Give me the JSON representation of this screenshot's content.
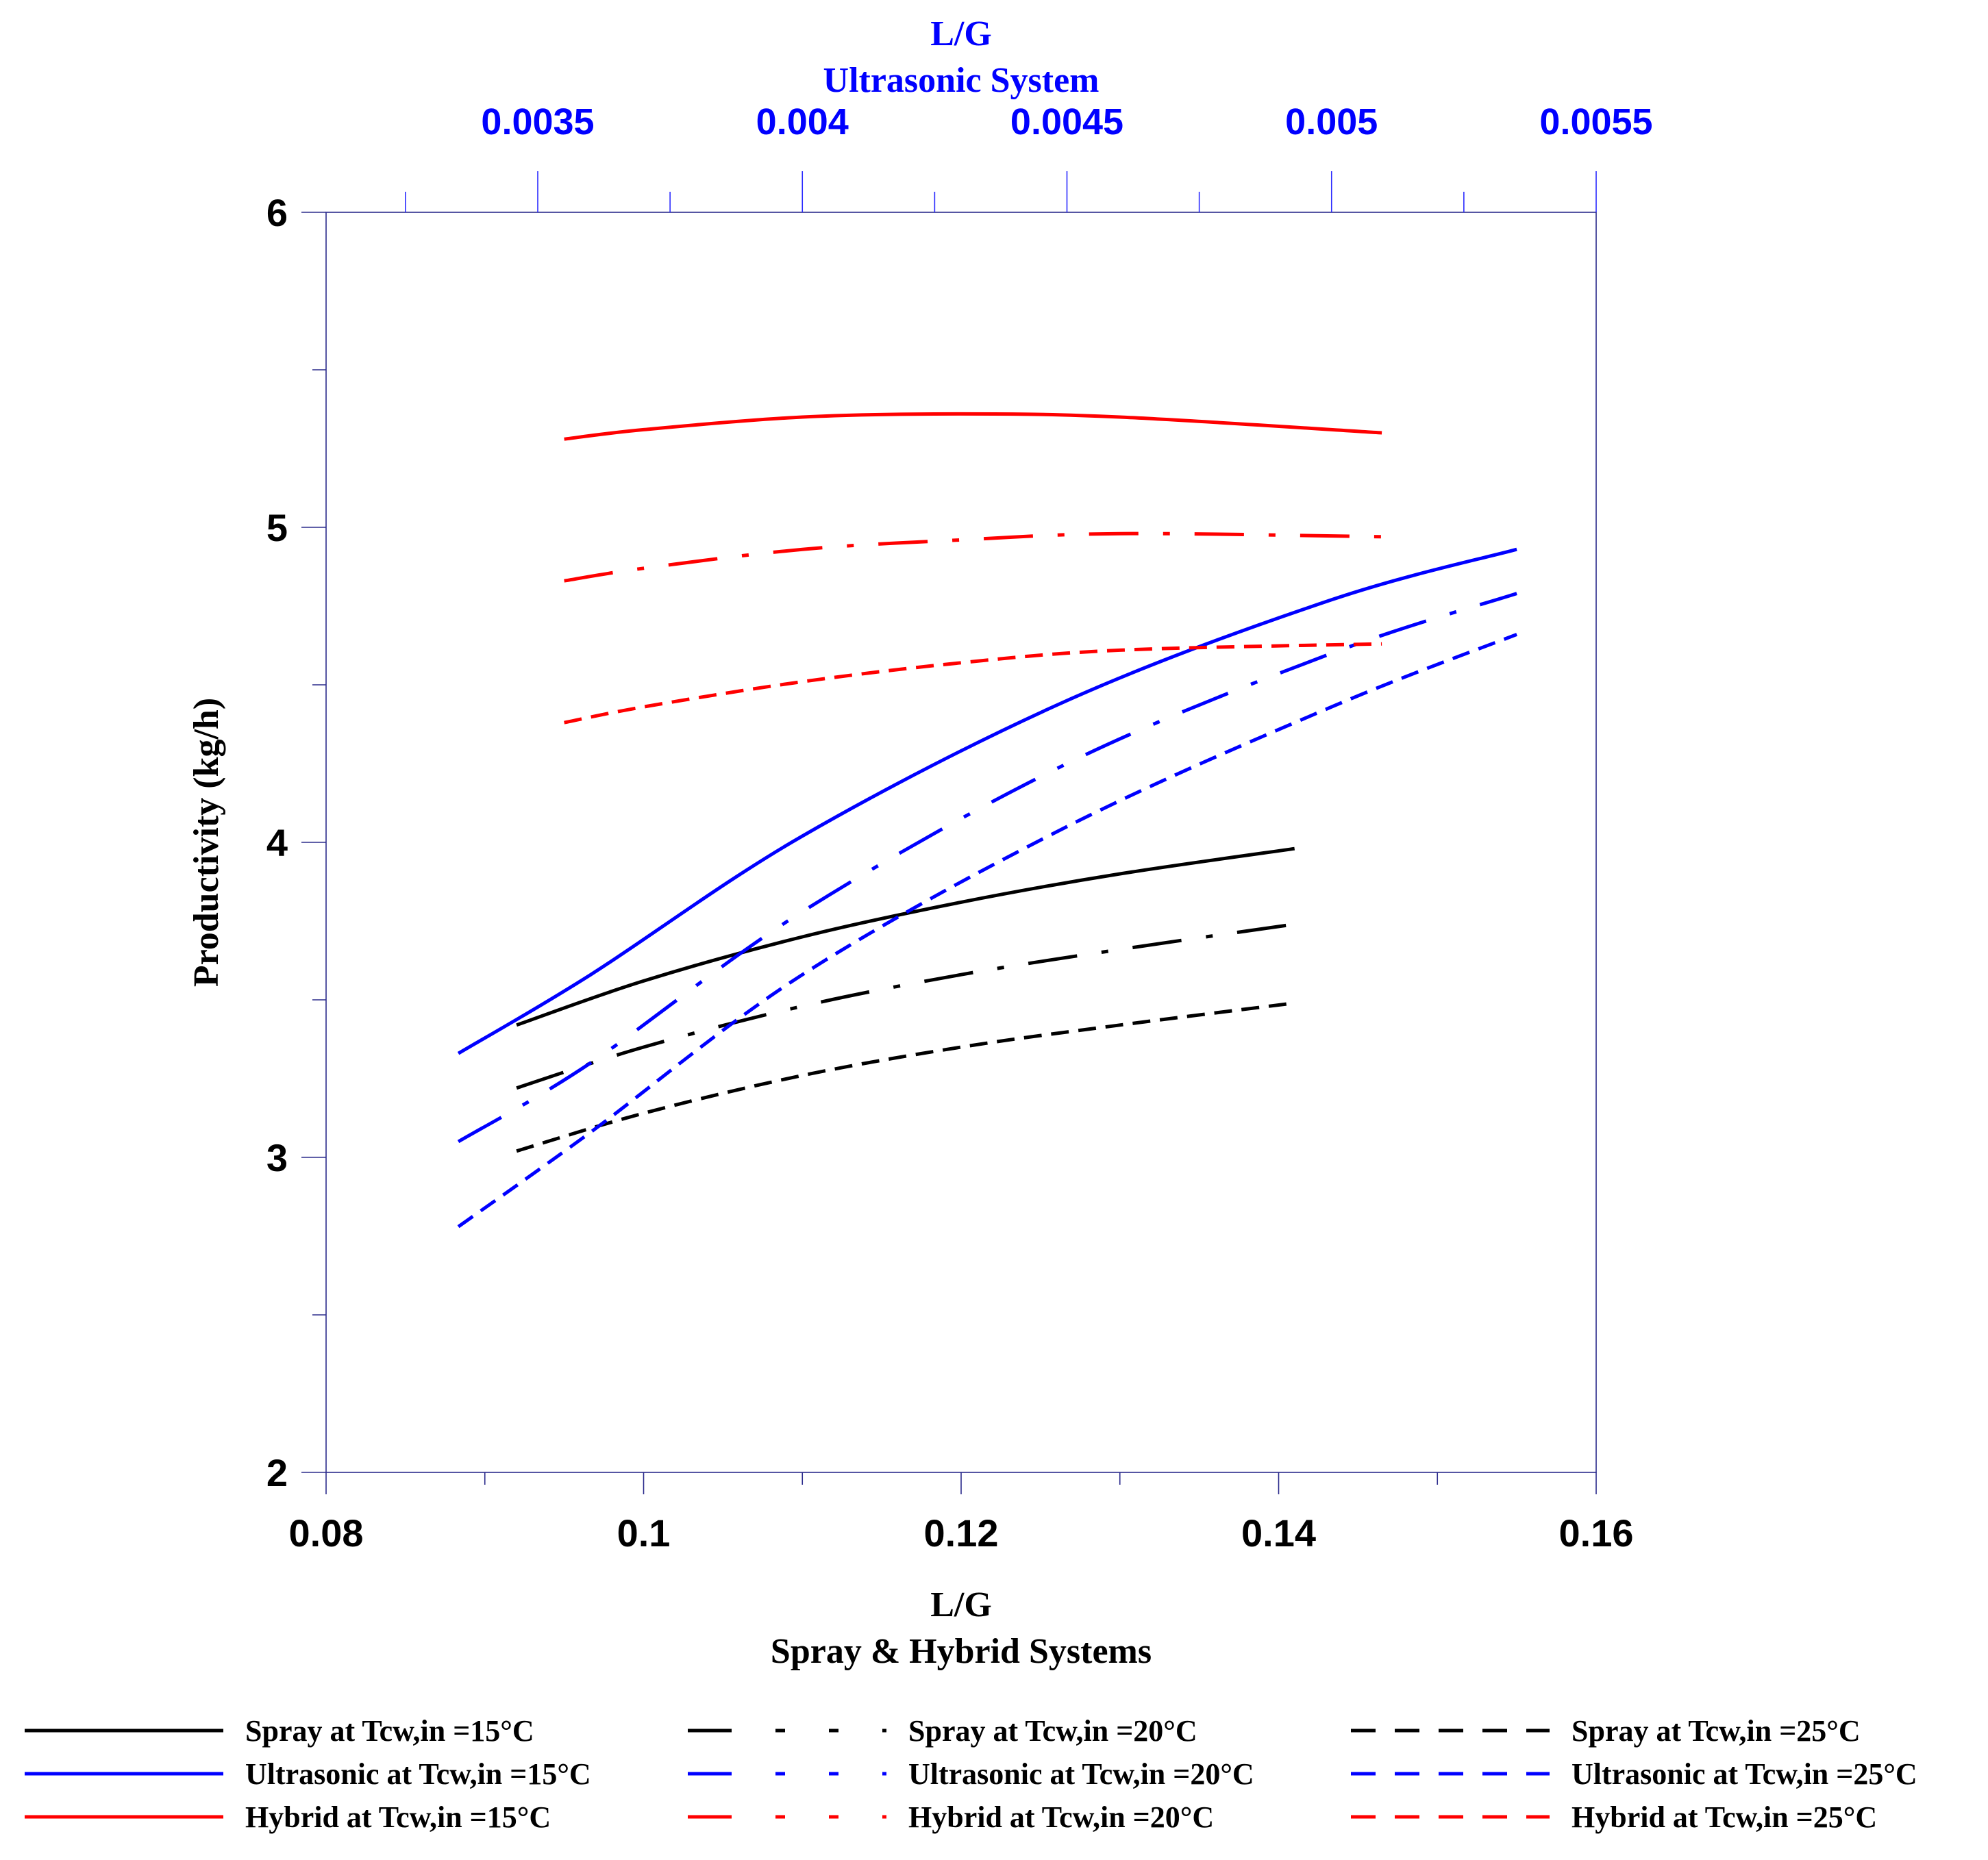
{
  "chart_data": {
    "type": "line",
    "bottom_axis": {
      "label_lines": [
        "L/G",
        "Spray & Hybrid Systems"
      ],
      "range": [
        0.08,
        0.16
      ],
      "ticks": [
        0.08,
        0.1,
        0.12,
        0.14,
        0.16
      ],
      "tick_labels": [
        "0.08",
        "0.1",
        "0.12",
        "0.14",
        "0.16"
      ],
      "minor_ticks": [
        0.09,
        0.11,
        0.13,
        0.15
      ]
    },
    "top_axis": {
      "label_lines": [
        "L/G",
        "Ultrasonic System"
      ],
      "range": [
        0.0031,
        0.0055
      ],
      "ticks": [
        0.0035,
        0.004,
        0.0045,
        0.005,
        0.0055
      ],
      "tick_labels": [
        "0.0035",
        "0.004",
        "0.0045",
        "0.005",
        "0.0055"
      ],
      "minor_ticks": [
        0.00325,
        0.00375,
        0.00425,
        0.00475,
        0.00525
      ],
      "color": "#0000ff"
    },
    "y_axis": {
      "label": "Productivity (kg/h)",
      "range": [
        2,
        6
      ],
      "ticks": [
        2,
        3,
        4,
        5,
        6
      ],
      "tick_labels": [
        "2",
        "3",
        "4",
        "5",
        "6"
      ],
      "minor_ticks": [
        2.5,
        3.5,
        4.5,
        5.5
      ]
    },
    "grid": false,
    "legend_position": "bottom",
    "series": [
      {
        "name": "Spray at Tcw,in =15°C",
        "axis": "bottom",
        "color": "#000000",
        "style": "solid",
        "x": [
          0.092,
          0.1,
          0.11,
          0.12,
          0.13,
          0.141
        ],
        "y": [
          3.42,
          3.56,
          3.7,
          3.81,
          3.9,
          3.98
        ]
      },
      {
        "name": "Spray at Tcw,in =20°C",
        "axis": "bottom",
        "color": "#000000",
        "style": "dashdot",
        "x": [
          0.092,
          0.1,
          0.11,
          0.12,
          0.13,
          0.141
        ],
        "y": [
          3.22,
          3.35,
          3.48,
          3.58,
          3.66,
          3.74
        ]
      },
      {
        "name": "Spray at Tcw,in =25°C",
        "axis": "bottom",
        "color": "#000000",
        "style": "dashed",
        "x": [
          0.092,
          0.1,
          0.11,
          0.12,
          0.13,
          0.141
        ],
        "y": [
          3.02,
          3.14,
          3.26,
          3.35,
          3.42,
          3.49
        ]
      },
      {
        "name": "Ultrasonic at Tcw,in =15°C",
        "axis": "top",
        "color": "#0000ff",
        "style": "solid",
        "x": [
          0.00335,
          0.0036,
          0.004,
          0.0045,
          0.005,
          0.00535
        ],
        "y": [
          3.33,
          3.58,
          4.02,
          4.45,
          4.77,
          4.93
        ]
      },
      {
        "name": "Ultrasonic at Tcw,in =20°C",
        "axis": "top",
        "color": "#0000ff",
        "style": "dashdot",
        "x": [
          0.00335,
          0.0036,
          0.004,
          0.0045,
          0.005,
          0.00535
        ],
        "y": [
          3.05,
          3.3,
          3.78,
          4.25,
          4.6,
          4.79
        ]
      },
      {
        "name": "Ultrasonic at Tcw,in =25°C",
        "axis": "top",
        "color": "#0000ff",
        "style": "dashed",
        "x": [
          0.00335,
          0.0036,
          0.004,
          0.0045,
          0.005,
          0.00535
        ],
        "y": [
          2.78,
          3.08,
          3.58,
          4.05,
          4.43,
          4.66
        ]
      },
      {
        "name": "Hybrid at Tcw,in =15°C",
        "axis": "bottom",
        "color": "#ff0000",
        "style": "solid",
        "x": [
          0.095,
          0.1,
          0.11,
          0.12,
          0.13,
          0.1465
        ],
        "y": [
          5.28,
          5.31,
          5.35,
          5.36,
          5.35,
          5.3
        ]
      },
      {
        "name": "Hybrid at Tcw,in =20°C",
        "axis": "bottom",
        "color": "#ff0000",
        "style": "dashdot",
        "x": [
          0.095,
          0.1,
          0.11,
          0.12,
          0.13,
          0.1465
        ],
        "y": [
          4.83,
          4.87,
          4.93,
          4.96,
          4.98,
          4.97
        ]
      },
      {
        "name": "Hybrid at Tcw,in =25°C",
        "axis": "bottom",
        "color": "#ff0000",
        "style": "dashed",
        "x": [
          0.095,
          0.1,
          0.11,
          0.12,
          0.13,
          0.1465
        ],
        "y": [
          4.38,
          4.43,
          4.51,
          4.57,
          4.61,
          4.63
        ]
      }
    ]
  }
}
